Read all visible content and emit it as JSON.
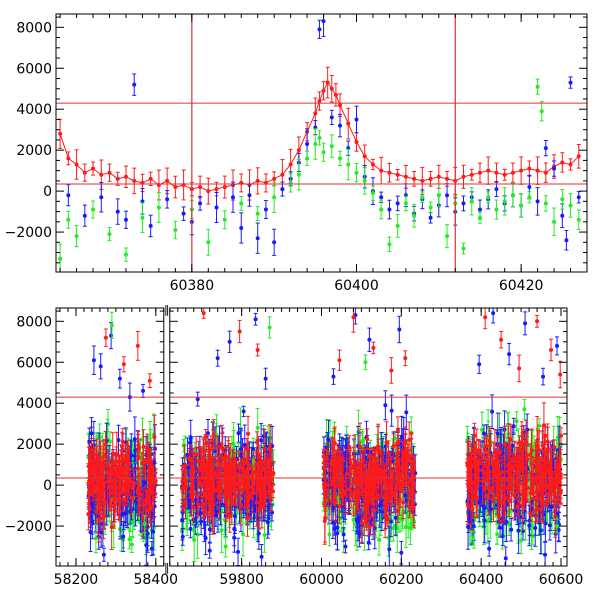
{
  "colors": {
    "red": "#ff1a1a",
    "blue": "#1a1aff",
    "green": "#22ee22",
    "ref_line": "#e23030",
    "frame": "#000000"
  },
  "chart_data": [
    {
      "type": "scatter",
      "panel": "top",
      "title": "",
      "xlabel": "",
      "ylabel": "",
      "xlim": [
        60363.5,
        60428
      ],
      "ylim": [
        -3950,
        8650
      ],
      "x_ticks": [
        60380,
        60400,
        60420
      ],
      "y_ticks": [
        -2000,
        0,
        2000,
        4000,
        6000,
        8000
      ],
      "error_bars": true,
      "reference_lines": {
        "horizontal": [
          4300,
          350
        ],
        "vertical": [
          60380,
          60412
        ]
      },
      "series": [
        {
          "color": "red",
          "points": [
            [
              60364,
              2800
            ],
            [
              60365,
              1600
            ],
            [
              60366,
              1300
            ],
            [
              60367,
              900
            ],
            [
              60368,
              1100
            ],
            [
              60369,
              800
            ],
            [
              60370,
              900
            ],
            [
              60371,
              600
            ],
            [
              60372,
              700
            ],
            [
              60373,
              500
            ],
            [
              60374,
              400
            ],
            [
              60375,
              600
            ],
            [
              60376,
              300
            ],
            [
              60377,
              500
            ],
            [
              60378,
              200
            ],
            [
              60379,
              300
            ],
            [
              60380,
              100
            ],
            [
              60381,
              200
            ],
            [
              60382,
              0
            ],
            [
              60383,
              100
            ],
            [
              60384,
              200
            ],
            [
              60385,
              300
            ],
            [
              60386,
              400
            ],
            [
              60387,
              300
            ],
            [
              60388,
              500
            ],
            [
              60389,
              400
            ],
            [
              60390,
              600
            ],
            [
              60391,
              800
            ],
            [
              60392,
              1300
            ],
            [
              60393,
              2000
            ],
            [
              60394,
              2900
            ],
            [
              60395,
              3800
            ],
            [
              60395.5,
              4400
            ],
            [
              60396,
              4900
            ],
            [
              60396.5,
              5300
            ],
            [
              60397,
              5000
            ],
            [
              60397.5,
              4700
            ],
            [
              60398,
              4200
            ],
            [
              60399,
              3300
            ],
            [
              60400,
              2400
            ],
            [
              60401,
              1700
            ],
            [
              60402,
              1300
            ],
            [
              60403,
              1000
            ],
            [
              60404,
              900
            ],
            [
              60405,
              800
            ],
            [
              60406,
              700
            ],
            [
              60407,
              600
            ],
            [
              60408,
              500
            ],
            [
              60409,
              600
            ],
            [
              60410,
              700
            ],
            [
              60411,
              600
            ],
            [
              60412,
              500
            ],
            [
              60413,
              700
            ],
            [
              60414,
              800
            ],
            [
              60415,
              900
            ],
            [
              60416,
              1000
            ],
            [
              60417,
              900
            ],
            [
              60418,
              800
            ],
            [
              60419,
              900
            ],
            [
              60420,
              1000
            ],
            [
              60421,
              1100
            ],
            [
              60422,
              1000
            ],
            [
              60423,
              900
            ],
            [
              60424,
              1200
            ],
            [
              60425,
              1400
            ],
            [
              60426,
              1300
            ],
            [
              60427,
              1700
            ]
          ]
        },
        {
          "color": "blue",
          "points": [
            [
              60365,
              -200
            ],
            [
              60367,
              -1200
            ],
            [
              60369,
              -300
            ],
            [
              60371,
              -1000
            ],
            [
              60372,
              -1400
            ],
            [
              60373,
              5200
            ],
            [
              60374,
              -500
            ],
            [
              60375,
              -1700
            ],
            [
              60377,
              -400
            ],
            [
              60379,
              -1100
            ],
            [
              60380,
              -1500
            ],
            [
              60381,
              -600
            ],
            [
              60383,
              -800
            ],
            [
              60385,
              -300
            ],
            [
              60386,
              -1800
            ],
            [
              60387,
              -200
            ],
            [
              60388,
              -2300
            ],
            [
              60389,
              -900
            ],
            [
              60390,
              -2500
            ],
            [
              60391,
              100
            ],
            [
              60392,
              600
            ],
            [
              60393,
              1400
            ],
            [
              60394,
              2300
            ],
            [
              60395,
              3100
            ],
            [
              60395.5,
              7900
            ],
            [
              60396,
              8300
            ],
            [
              60397,
              3600
            ],
            [
              60398,
              3200
            ],
            [
              60399,
              2100
            ],
            [
              60400,
              3500
            ],
            [
              60401,
              700
            ],
            [
              60402,
              0
            ],
            [
              60403,
              -300
            ],
            [
              60404,
              -900
            ],
            [
              60405,
              -600
            ],
            [
              60406,
              -200
            ],
            [
              60407,
              -1100
            ],
            [
              60408,
              -400
            ],
            [
              60409,
              -1300
            ],
            [
              60410,
              -700
            ],
            [
              60411,
              -200
            ],
            [
              60412,
              -1000
            ],
            [
              60413,
              -600
            ],
            [
              60414,
              -300
            ],
            [
              60415,
              -900
            ],
            [
              60416,
              -400
            ],
            [
              60417,
              100
            ],
            [
              60418,
              -600
            ],
            [
              60419,
              -200
            ],
            [
              60420,
              -700
            ],
            [
              60421,
              200
            ],
            [
              60422,
              -500
            ],
            [
              60423,
              2100
            ],
            [
              60424,
              1100
            ],
            [
              60425,
              -1200
            ],
            [
              60425.5,
              -2400
            ],
            [
              60426,
              5300
            ],
            [
              60427,
              -300
            ]
          ]
        },
        {
          "color": "green",
          "points": [
            [
              60364,
              -3300
            ],
            [
              60365,
              -1400
            ],
            [
              60366,
              -2200
            ],
            [
              60368,
              -900
            ],
            [
              60370,
              -2100
            ],
            [
              60372,
              -3100
            ],
            [
              60374,
              -1300
            ],
            [
              60376,
              -800
            ],
            [
              60378,
              -1900
            ],
            [
              60380,
              -900
            ],
            [
              60382,
              -2500
            ],
            [
              60384,
              -1400
            ],
            [
              60386,
              -600
            ],
            [
              60388,
              -1100
            ],
            [
              60390,
              -300
            ],
            [
              60392,
              400
            ],
            [
              60393,
              800
            ],
            [
              60394,
              1600
            ],
            [
              60395,
              2300
            ],
            [
              60395.5,
              2600
            ],
            [
              60396,
              1900
            ],
            [
              60397,
              2200
            ],
            [
              60398,
              1600
            ],
            [
              60399,
              1300
            ],
            [
              60400,
              900
            ],
            [
              60401,
              500
            ],
            [
              60402,
              -100
            ],
            [
              60403,
              -900
            ],
            [
              60404,
              -2600
            ],
            [
              60405,
              -1700
            ],
            [
              60406,
              -600
            ],
            [
              60407,
              -1200
            ],
            [
              60408,
              -300
            ],
            [
              60409,
              -800
            ],
            [
              60410,
              -200
            ],
            [
              60411,
              -2200
            ],
            [
              60412,
              -600
            ],
            [
              60413,
              -2800
            ],
            [
              60414,
              -500
            ],
            [
              60415,
              -1300
            ],
            [
              60416,
              -300
            ],
            [
              60417,
              -900
            ],
            [
              60418,
              -500
            ],
            [
              60419,
              -200
            ],
            [
              60420,
              -700
            ],
            [
              60421,
              -300
            ],
            [
              60422,
              5100
            ],
            [
              60422.5,
              3900
            ],
            [
              60423,
              -600
            ],
            [
              60424,
              -1500
            ],
            [
              60425,
              -400
            ],
            [
              60426,
              -700
            ],
            [
              60427,
              -1400
            ]
          ]
        }
      ]
    },
    {
      "type": "scatter",
      "panel": "bottom",
      "title": "",
      "xlabel": "",
      "ylabel": "",
      "xlim": [
        58150,
        60615
      ],
      "ylim": [
        -3950,
        8650
      ],
      "x_ticks": [
        58200,
        58400,
        59800,
        60000,
        60200,
        60400,
        60600
      ],
      "y_ticks": [
        -2000,
        0,
        2000,
        4000,
        6000,
        8000
      ],
      "error_bars": true,
      "broken_axis": {
        "gap_from": 58420,
        "gap_to": 59620,
        "break_marks": [
          "‖",
          "‖"
        ]
      },
      "reference_lines": {
        "horizontal": [
          4300,
          350
        ]
      },
      "observing_seasons": [
        {
          "x_range": [
            58230,
            58400
          ],
          "center": 300,
          "scatter": 1400
        },
        {
          "x_range": [
            59650,
            59880
          ],
          "center": 400,
          "scatter": 1300
        },
        {
          "x_range": [
            60005,
            60235
          ],
          "center": 300,
          "scatter": 1400
        },
        {
          "x_range": [
            60365,
            60600
          ],
          "center": 500,
          "scatter": 1400
        }
      ],
      "series": [
        {
          "color": "blue",
          "points": [
            [
              58245,
              6100
            ],
            [
              58262,
              5800
            ],
            [
              58288,
              7300
            ],
            [
              58310,
              5200
            ],
            [
              58335,
              4300
            ],
            [
              58368,
              4600
            ],
            [
              58390,
              -3100
            ],
            [
              59690,
              4200
            ],
            [
              59740,
              6200
            ],
            [
              59770,
              7000
            ],
            [
              59805,
              3600
            ],
            [
              59835,
              8100
            ],
            [
              59860,
              5200
            ],
            [
              60030,
              5300
            ],
            [
              60085,
              8300
            ],
            [
              60120,
              7100
            ],
            [
              60160,
              3900
            ],
            [
              60195,
              7600
            ],
            [
              60395,
              5900
            ],
            [
              60430,
              8400
            ],
            [
              60470,
              6400
            ],
            [
              60510,
              7900
            ],
            [
              60555,
              5300
            ],
            [
              60590,
              6800
            ],
            [
              58270,
              -3400
            ],
            [
              59720,
              -3200
            ],
            [
              59850,
              -3500
            ],
            [
              60060,
              -3000
            ],
            [
              60200,
              -3300
            ],
            [
              60420,
              -3100
            ],
            [
              60560,
              -3400
            ]
          ]
        },
        {
          "color": "red",
          "points": [
            [
              58275,
              7200
            ],
            [
              58320,
              5900
            ],
            [
              58355,
              6800
            ],
            [
              58385,
              5100
            ],
            [
              59705,
              8400
            ],
            [
              59795,
              7500
            ],
            [
              59840,
              6600
            ],
            [
              60045,
              6100
            ],
            [
              60080,
              8200
            ],
            [
              60130,
              6700
            ],
            [
              60175,
              5600
            ],
            [
              60210,
              6200
            ],
            [
              60410,
              8200
            ],
            [
              60450,
              7100
            ],
            [
              60495,
              5700
            ],
            [
              60540,
              8000
            ],
            [
              60575,
              6600
            ],
            [
              60598,
              5400
            ]
          ]
        },
        {
          "color": "green",
          "points": [
            [
              58250,
              -2600
            ],
            [
              58290,
              7800
            ],
            [
              58340,
              -2900
            ],
            [
              58372,
              -1900
            ],
            [
              59680,
              -2200
            ],
            [
              59760,
              -3000
            ],
            [
              59870,
              7700
            ],
            [
              60020,
              -2400
            ],
            [
              60110,
              6000
            ],
            [
              60180,
              -2100
            ],
            [
              60225,
              -1900
            ],
            [
              60380,
              -2600
            ],
            [
              60440,
              -2400
            ],
            [
              60500,
              -2700
            ],
            [
              60590,
              -2000
            ]
          ]
        }
      ]
    }
  ]
}
